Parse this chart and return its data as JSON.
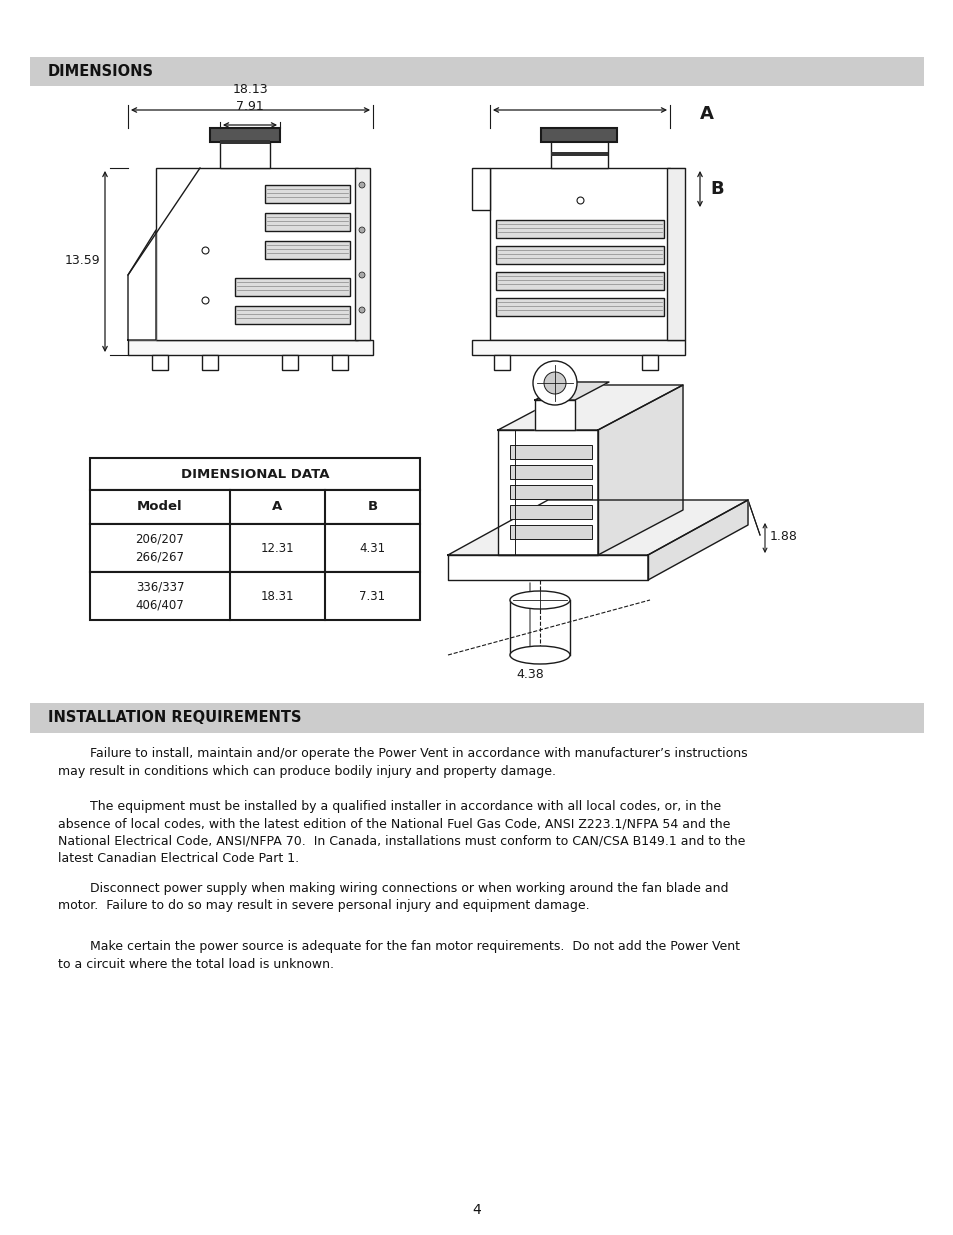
{
  "page_bg": "#ffffff",
  "section1_title": "DIMENSIONS",
  "section1_bg": "#cccccc",
  "section2_title": "INSTALLATION REQUIREMENTS",
  "section2_bg": "#cccccc",
  "table_title": "DIMENSIONAL DATA",
  "table_headers": [
    "Model",
    "A",
    "B"
  ],
  "table_rows": [
    [
      "206/207\n266/267",
      "12.31",
      "4.31"
    ],
    [
      "336/337\n406/407",
      "18.31",
      "7.31"
    ]
  ],
  "dim_label_18": "18.13",
  "dim_label_791": "7.91",
  "dim_label_1359": "13.59",
  "dim_label_A": "A",
  "dim_label_B": "B",
  "dim_label_188": "1.88",
  "dim_label_438": "4.38",
  "para1": "        Failure to install, maintain and/or operate the Power Vent in accordance with manufacturer’s instructions\nmay result in conditions which can produce bodily injury and property damage.",
  "para2": "        The equipment must be installed by a qualified installer in accordance with all local codes, or, in the\nabsence of local codes, with the latest edition of the National Fuel Gas Code, ANSI Z223.1/NFPA 54 and the\nNational Electrical Code, ANSI/NFPA 70.  In Canada, installations must conform to CAN/CSA B149.1 and to the\nlatest Canadian Electrical Code Part 1.",
  "para3": "        Disconnect power supply when making wiring connections or when working around the fan blade and\nmotor.  Failure to do so may result in severe personal injury and equipment damage.",
  "para4": "        Make certain the power source is adequate for the fan motor requirements.  Do not add the Power Vent\nto a circuit where the total load is unknown.",
  "page_number": "4"
}
